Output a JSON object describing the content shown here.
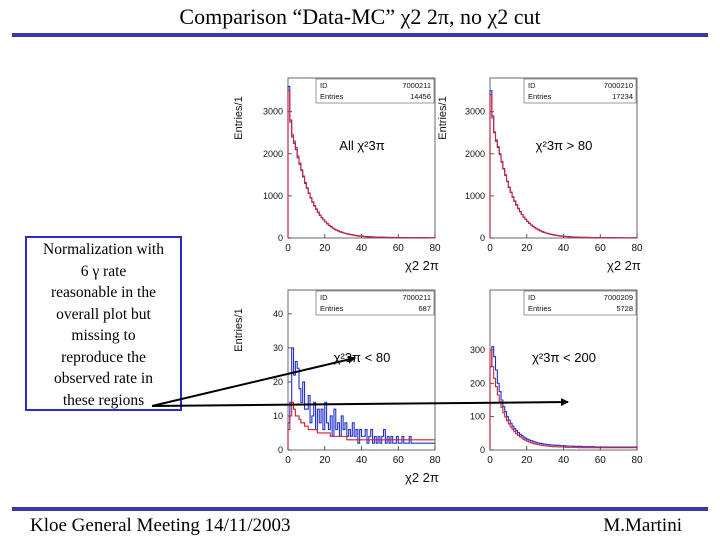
{
  "title": "Comparison “Data-MC” χ2 2π, no χ2 cut",
  "note": {
    "lines": [
      "Normalization with",
      "6 γ rate",
      "reasonable in the",
      "overall plot but",
      "missing to",
      "reproduce the",
      "observed rate in",
      "these regions"
    ]
  },
  "footer": {
    "left": "Kloe General Meeting 14/11/2003",
    "right": "M.Martini"
  },
  "colors": {
    "rule": "#3a3aa8",
    "data": "#2030d0",
    "mc": "#d02030",
    "note_border": "#2b2bd0"
  },
  "chart_data": [
    {
      "type": "bar",
      "name": "tl",
      "annotation": "All χ²3π",
      "xlabel": "χ2 2π",
      "ylabel": "Entries/1",
      "stats": {
        "id_label": "ID",
        "id": "7000211",
        "entries_label": "Entries",
        "entries": "14456"
      },
      "xlim": [
        0,
        80
      ],
      "xticks": [
        "0",
        "20",
        "40",
        "60",
        "80"
      ],
      "ylim": [
        0,
        3800
      ],
      "yticks": [
        "0",
        "1000",
        "2000",
        "3000"
      ],
      "series": [
        {
          "name": "Data",
          "values": [
            3600,
            2800,
            2400,
            2250,
            2100,
            1900,
            1750,
            1600,
            1450,
            1300,
            1180,
            1060,
            950,
            850,
            760,
            680,
            610,
            540,
            480,
            430,
            380,
            340,
            300,
            270,
            240,
            210,
            190,
            170,
            150,
            135,
            120,
            110,
            100,
            90,
            80,
            72,
            65,
            58,
            52,
            47,
            42,
            38,
            35,
            32,
            30,
            28,
            26,
            24,
            22,
            21,
            20,
            19,
            18,
            17,
            16,
            15,
            14,
            13,
            12,
            12,
            11,
            11,
            10,
            10,
            10,
            9,
            9,
            9,
            8,
            8,
            8,
            8,
            7,
            7,
            7,
            7,
            6,
            6,
            6,
            6
          ]
        },
        {
          "name": "MC",
          "values": [
            3500,
            2750,
            2450,
            2300,
            2150,
            1950,
            1780,
            1620,
            1470,
            1320,
            1190,
            1070,
            960,
            860,
            770,
            690,
            615,
            545,
            485,
            430,
            382,
            338,
            300,
            266,
            236,
            210,
            186,
            165,
            147,
            131,
            117,
            104,
            93,
            83,
            74,
            66,
            59,
            53,
            47,
            42,
            38,
            34,
            31,
            28,
            25,
            23,
            21,
            19,
            17,
            16,
            15,
            14,
            13,
            12,
            11,
            10,
            9,
            9,
            8,
            8,
            7,
            7,
            7,
            6,
            6,
            6,
            5,
            5,
            5,
            5,
            4,
            4,
            4,
            4,
            4,
            3,
            3,
            3,
            3,
            3
          ]
        }
      ]
    },
    {
      "type": "bar",
      "name": "tr",
      "annotation": "χ²3π > 80",
      "xlabel": "χ2 2π",
      "ylabel": "Entries/1",
      "stats": {
        "id_label": "ID",
        "id": "7000210",
        "entries_label": "Entries",
        "entries": "17234"
      },
      "xlim": [
        0,
        80
      ],
      "xticks": [
        "0",
        "20",
        "40",
        "60",
        "80"
      ],
      "ylim": [
        0,
        3800
      ],
      "yticks": [
        "0",
        "1000",
        "2000",
        "3000"
      ],
      "series": [
        {
          "name": "Data",
          "values": [
            3500,
            2900,
            2500,
            2300,
            2150,
            1980,
            1800,
            1640,
            1490,
            1340,
            1200,
            1080,
            970,
            870,
            780,
            700,
            625,
            555,
            495,
            440,
            390,
            348,
            310,
            276,
            246,
            218,
            194,
            172,
            153,
            136,
            121,
            108,
            96,
            86,
            77,
            69,
            62,
            55,
            49,
            44,
            40,
            36,
            33,
            30,
            27,
            25,
            23,
            21,
            19,
            18,
            17,
            16,
            15,
            14,
            13,
            12,
            11,
            11,
            10,
            10,
            9,
            9,
            8,
            8,
            8,
            7,
            7,
            7,
            6,
            6,
            6,
            6,
            5,
            5,
            5,
            5,
            5,
            4,
            4,
            4
          ]
        },
        {
          "name": "MC",
          "values": [
            3400,
            2850,
            2520,
            2330,
            2170,
            2000,
            1820,
            1650,
            1500,
            1350,
            1210,
            1090,
            980,
            880,
            790,
            705,
            630,
            560,
            498,
            442,
            392,
            348,
            309,
            274,
            243,
            216,
            192,
            170,
            151,
            134,
            119,
            106,
            94,
            84,
            75,
            67,
            60,
            53,
            47,
            42,
            38,
            34,
            30,
            27,
            24,
            22,
            20,
            18,
            16,
            15,
            14,
            13,
            12,
            11,
            10,
            9,
            9,
            8,
            8,
            7,
            7,
            6,
            6,
            6,
            5,
            5,
            5,
            5,
            4,
            4,
            4,
            4,
            4,
            3,
            3,
            3,
            3,
            3,
            3,
            3
          ]
        }
      ]
    },
    {
      "type": "bar",
      "name": "bl",
      "annotation": "χ²3π < 80",
      "xlabel": "χ2 2π",
      "ylabel": "Entries/1",
      "stats": {
        "id_label": "ID",
        "id": "7000211",
        "entries_label": "Entries",
        "entries": "687"
      },
      "xlim": [
        0,
        80
      ],
      "xticks": [
        "0",
        "20",
        "40",
        "60",
        "80"
      ],
      "ylim": [
        0,
        47
      ],
      "yticks": [
        "0",
        "10",
        "20",
        "30",
        "40"
      ],
      "series": [
        {
          "name": "Data",
          "values": [
            8,
            14,
            30,
            22,
            26,
            24,
            18,
            14,
            20,
            12,
            12,
            16,
            8,
            10,
            14,
            6,
            12,
            8,
            12,
            6,
            14,
            8,
            6,
            10,
            4,
            12,
            6,
            8,
            4,
            10,
            6,
            8,
            4,
            6,
            4,
            8,
            4,
            6,
            2,
            6,
            4,
            4,
            6,
            2,
            4,
            6,
            2,
            4,
            2,
            4,
            2,
            4,
            6,
            2,
            4,
            2,
            4,
            2,
            2,
            4,
            2,
            2,
            4,
            2,
            2,
            2,
            4,
            2,
            2,
            2,
            2,
            2,
            2,
            2,
            2,
            2,
            2,
            2,
            2,
            2
          ]
        },
        {
          "name": "MC",
          "values": [
            6,
            10,
            14,
            12,
            10,
            10,
            9,
            8,
            8,
            7,
            7,
            6,
            6,
            6,
            6,
            6,
            5,
            5,
            5,
            5,
            5,
            5,
            5,
            4,
            4,
            4,
            4,
            4,
            4,
            4,
            4,
            4,
            3,
            3,
            3,
            3,
            3,
            3,
            3,
            3,
            3,
            3,
            3,
            3,
            3,
            3,
            3,
            3,
            3,
            3,
            3,
            3,
            3,
            3,
            3,
            3,
            3,
            3,
            3,
            3,
            3,
            3,
            3,
            3,
            3,
            3,
            3,
            3,
            3,
            3,
            3,
            3,
            3,
            3,
            3,
            3,
            3,
            3,
            3,
            3
          ]
        }
      ]
    },
    {
      "type": "bar",
      "name": "br",
      "annotation": "χ²3π < 200",
      "xlabel": "",
      "ylabel": "",
      "stats": {
        "id_label": "ID",
        "id": "7000209",
        "entries_label": "Entries",
        "entries": "5728"
      },
      "xlim": [
        0,
        80
      ],
      "xticks": [
        "0",
        "20",
        "40",
        "60",
        "80"
      ],
      "ylim": [
        0,
        480
      ],
      "yticks": [
        "0",
        "100",
        "200",
        "300"
      ],
      "series": [
        {
          "name": "Data",
          "values": [
            250,
            310,
            280,
            240,
            200,
            175,
            150,
            130,
            115,
            100,
            90,
            80,
            72,
            64,
            58,
            52,
            47,
            43,
            39,
            35,
            32,
            30,
            28,
            26,
            24,
            22,
            21,
            20,
            19,
            18,
            17,
            16,
            16,
            15,
            15,
            14,
            14,
            14,
            13,
            13,
            13,
            12,
            12,
            12,
            12,
            11,
            11,
            11,
            11,
            11,
            10,
            10,
            10,
            10,
            10,
            10,
            10,
            9,
            9,
            9,
            9,
            9,
            9,
            9,
            9,
            9,
            9,
            9,
            9,
            9,
            9,
            9,
            9,
            9,
            9,
            9,
            9,
            9,
            9,
            9
          ]
        },
        {
          "name": "MC",
          "values": [
            300,
            250,
            215,
            190,
            165,
            145,
            128,
            112,
            99,
            88,
            78,
            69,
            62,
            55,
            49,
            44,
            40,
            36,
            32,
            29,
            26,
            24,
            22,
            20,
            18,
            17,
            16,
            15,
            14,
            13,
            12,
            12,
            11,
            11,
            10,
            10,
            10,
            9,
            9,
            9,
            9,
            8,
            8,
            8,
            8,
            8,
            8,
            8,
            7,
            7,
            7,
            7,
            7,
            7,
            7,
            7,
            7,
            7,
            7,
            7,
            7,
            7,
            7,
            7,
            7,
            7,
            7,
            7,
            7,
            7,
            7,
            7,
            7,
            7,
            7,
            7,
            7,
            7,
            7,
            7
          ]
        }
      ]
    }
  ]
}
